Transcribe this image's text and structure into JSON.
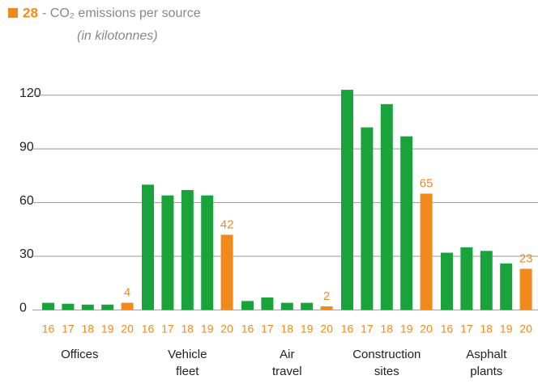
{
  "chart_data": {
    "type": "bar",
    "title_number": "28",
    "title": "- CO₂ emissions per source",
    "subtitle": "(in kilotonnes)",
    "categories": [
      [
        "Offices"
      ],
      [
        "Vehicle",
        "fleet"
      ],
      [
        "Air",
        "travel"
      ],
      [
        "Construction",
        "sites"
      ],
      [
        "Asphalt",
        "plants"
      ]
    ],
    "series": [
      {
        "name": "16",
        "color": "#1aa33b",
        "values": [
          4,
          70,
          5,
          123,
          32
        ]
      },
      {
        "name": "17",
        "color": "#1aa33b",
        "values": [
          3.5,
          64,
          7,
          102,
          35
        ]
      },
      {
        "name": "18",
        "color": "#1aa33b",
        "values": [
          3,
          67,
          4,
          115,
          33
        ]
      },
      {
        "name": "19",
        "color": "#1aa33b",
        "values": [
          3,
          64,
          4,
          97,
          26
        ]
      },
      {
        "name": "20",
        "color": "#f08a1c",
        "values": [
          4,
          42,
          2,
          65,
          23
        ],
        "data_labels": true
      }
    ],
    "ylim": [
      -5,
      128
    ],
    "yticks": [
      0,
      30,
      60,
      90,
      120
    ],
    "grid": true
  }
}
